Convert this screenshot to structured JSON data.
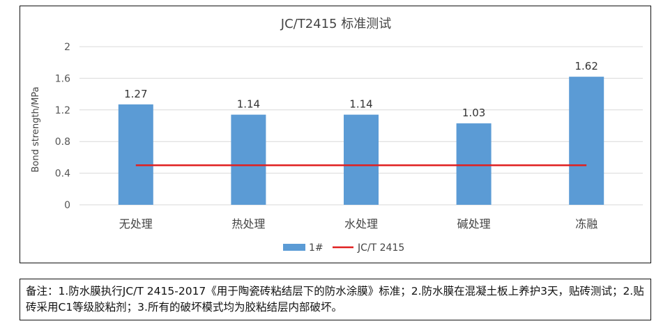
{
  "chart_data": {
    "type": "bar",
    "title": "JC/T2415 标准测试",
    "ylabel": "Bond strength/MPa",
    "xlabel": "",
    "categories": [
      "无处理",
      "热处理",
      "水处理",
      "碱处理",
      "冻融"
    ],
    "series": [
      {
        "name": "1#",
        "type": "bar",
        "values": [
          1.27,
          1.14,
          1.14,
          1.03,
          1.62
        ],
        "color": "#5B9BD5"
      },
      {
        "name": "JC/T 2415",
        "type": "line",
        "values": [
          0.5,
          0.5,
          0.5,
          0.5,
          0.5
        ],
        "color": "#E02020"
      }
    ],
    "data_labels": [
      "1.27",
      "1.14",
      "1.14",
      "1.03",
      "1.62"
    ],
    "ylim": [
      0,
      2
    ],
    "yticks": [
      "0",
      "0.4",
      "0.8",
      "1.2",
      "1.6",
      "2"
    ],
    "grid": true,
    "legend_position": "bottom"
  },
  "note": {
    "text": "备注：1.防水膜执行JC/T 2415-2017《用于陶瓷砖粘结层下的防水涂膜》标准；2.防水膜在混凝土板上养护3天，贴砖测试；2.贴砖采用C1等级胶粘剂；3.所有的破坏模式均为胶粘结层内部破坏。"
  }
}
